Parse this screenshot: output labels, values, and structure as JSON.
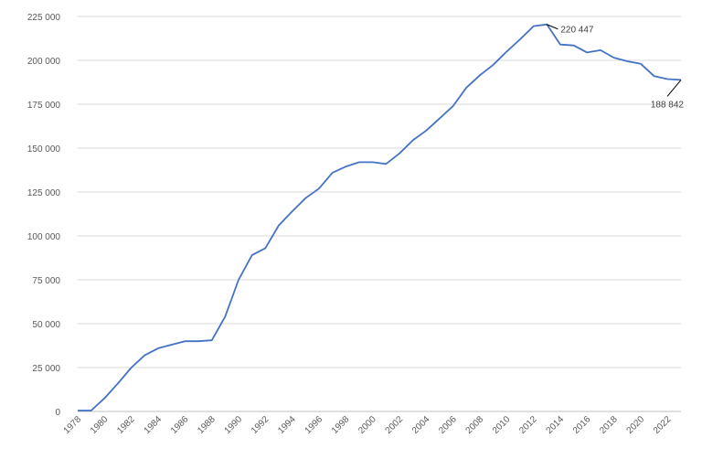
{
  "chart_data": {
    "type": "line",
    "title": "",
    "xlabel": "",
    "ylabel": "",
    "grid": true,
    "legend": "none",
    "line_color": "#4472c4",
    "xlim": [
      1978,
      2023
    ],
    "ylim": [
      0,
      225000
    ],
    "y_ticks": [
      0,
      25000,
      50000,
      75000,
      100000,
      125000,
      150000,
      175000,
      200000,
      225000
    ],
    "y_tick_labels": [
      "0",
      "25 000",
      "50 000",
      "75 000",
      "100 000",
      "125 000",
      "150 000",
      "175 000",
      "200 000",
      "225 000"
    ],
    "x_tick_labels": [
      "1978",
      "1980",
      "1982",
      "1984",
      "1986",
      "1988",
      "1990",
      "1992",
      "1994",
      "1996",
      "1998",
      "2000",
      "2002",
      "2004",
      "2006",
      "2008",
      "2010",
      "2012",
      "2014",
      "2016",
      "2018",
      "2020",
      "2022"
    ],
    "series": [
      {
        "x": [
          1978,
          1979,
          1980,
          1981,
          1982,
          1983,
          1984,
          1985,
          1986,
          1987,
          1988,
          1989,
          1990,
          1991,
          1992,
          1993,
          1994,
          1995,
          1996,
          1997,
          1998,
          1999,
          2000,
          2001,
          2002,
          2003,
          2004,
          2005,
          2006,
          2007,
          2008,
          2009,
          2010,
          2011,
          2012,
          2013,
          2014,
          2015,
          2016,
          2017,
          2018,
          2019,
          2020,
          2021,
          2022,
          2023
        ],
        "values": [
          500,
          500,
          7500,
          16000,
          25000,
          32000,
          36000,
          38000,
          40000,
          40000,
          40500,
          54000,
          75000,
          89000,
          93000,
          106000,
          114000,
          121500,
          127000,
          136000,
          139500,
          142000,
          142000,
          141000,
          147000,
          154500,
          160000,
          167000,
          174000,
          184500,
          191500,
          197500,
          205000,
          212000,
          219500,
          220447,
          209000,
          208500,
          204500,
          205800,
          201500,
          199500,
          198000,
          191000,
          189300,
          188842
        ]
      }
    ],
    "annotations": [
      {
        "label": "220 447",
        "x": 2013,
        "y": 220447
      },
      {
        "label": "188 842",
        "x": 2023,
        "y": 188842
      }
    ]
  }
}
